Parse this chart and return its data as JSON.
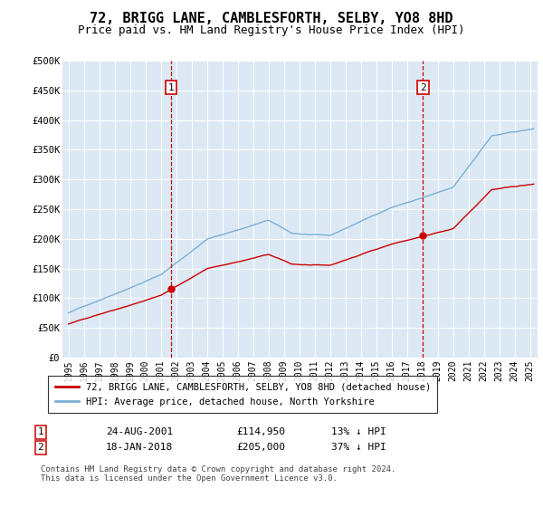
{
  "title": "72, BRIGG LANE, CAMBLESFORTH, SELBY, YO8 8HD",
  "subtitle": "Price paid vs. HM Land Registry's House Price Index (HPI)",
  "title_fontsize": 11,
  "subtitle_fontsize": 9,
  "bg_color": "#dce9f5",
  "fig_bg": "#ffffff",
  "ylim": [
    0,
    500000
  ],
  "xlim_start": 1994.6,
  "xlim_end": 2025.5,
  "yticks": [
    0,
    50000,
    100000,
    150000,
    200000,
    250000,
    300000,
    350000,
    400000,
    450000,
    500000
  ],
  "ytick_labels": [
    "£0",
    "£50K",
    "£100K",
    "£150K",
    "£200K",
    "£250K",
    "£300K",
    "£350K",
    "£400K",
    "£450K",
    "£500K"
  ],
  "xtick_years": [
    1995,
    1996,
    1997,
    1998,
    1999,
    2000,
    2001,
    2002,
    2003,
    2004,
    2005,
    2006,
    2007,
    2008,
    2009,
    2010,
    2011,
    2012,
    2013,
    2014,
    2015,
    2016,
    2017,
    2018,
    2019,
    2020,
    2021,
    2022,
    2023,
    2024,
    2025
  ],
  "hpi_color": "#7bafd4",
  "price_color": "#cc0000",
  "sale1_date": 2001.644,
  "sale1_price": 114950,
  "sale2_date": 2018.046,
  "sale2_price": 205000,
  "legend_label_red": "72, BRIGG LANE, CAMBLESFORTH, SELBY, YO8 8HD (detached house)",
  "legend_label_blue": "HPI: Average price, detached house, North Yorkshire",
  "note1_date": "24-AUG-2001",
  "note1_price": "£114,950",
  "note1_hpi": "13% ↓ HPI",
  "note2_date": "18-JAN-2018",
  "note2_price": "£205,000",
  "note2_hpi": "37% ↓ HPI",
  "footer": "Contains HM Land Registry data © Crown copyright and database right 2024.\nThis data is licensed under the Open Government Licence v3.0."
}
